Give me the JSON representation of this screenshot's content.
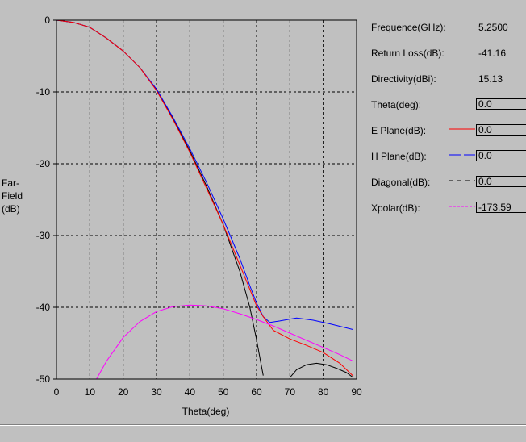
{
  "chart_data": {
    "type": "line",
    "xlabel": "Theta(deg)",
    "ylabel": "Far-\nField\n(dB)",
    "xlim": [
      0,
      90
    ],
    "ylim": [
      -50,
      0
    ],
    "x_ticks": [
      "0",
      "10",
      "20",
      "30",
      "40",
      "50",
      "60",
      "70",
      "80",
      "90"
    ],
    "y_ticks": [
      "0",
      "-10",
      "-20",
      "-30",
      "-40",
      "-50"
    ],
    "grid": true,
    "series": [
      {
        "name": "E Plane(dB)",
        "color": "#ff0000",
        "points": [
          [
            0,
            0
          ],
          [
            5,
            -0.3
          ],
          [
            10,
            -1
          ],
          [
            15,
            -2.5
          ],
          [
            20,
            -4.3
          ],
          [
            25,
            -6.6
          ],
          [
            30,
            -9.8
          ],
          [
            35,
            -13.9
          ],
          [
            40,
            -18.4
          ],
          [
            45,
            -23.4
          ],
          [
            50,
            -28.5
          ],
          [
            55,
            -34.1
          ],
          [
            58,
            -37.5
          ],
          [
            60,
            -39.8
          ],
          [
            62,
            -41.3
          ],
          [
            65,
            -43.2
          ],
          [
            70,
            -44.4
          ],
          [
            75,
            -45.3
          ],
          [
            80,
            -46.3
          ],
          [
            85,
            -47.8
          ],
          [
            89,
            -49.6
          ]
        ]
      },
      {
        "name": "H Plane(dB)",
        "color": "#0000ff",
        "points": [
          [
            0,
            0
          ],
          [
            5,
            -0.3
          ],
          [
            10,
            -1
          ],
          [
            15,
            -2.5
          ],
          [
            20,
            -4.3
          ],
          [
            25,
            -6.6
          ],
          [
            30,
            -9.6
          ],
          [
            35,
            -13.6
          ],
          [
            40,
            -17.9
          ],
          [
            45,
            -22.6
          ],
          [
            50,
            -27.7
          ],
          [
            55,
            -33.2
          ],
          [
            58,
            -37
          ],
          [
            60,
            -39.4
          ],
          [
            62,
            -41.3
          ],
          [
            64,
            -42.1
          ],
          [
            67,
            -41.9
          ],
          [
            72,
            -41.5
          ],
          [
            77,
            -41.8
          ],
          [
            82,
            -42.3
          ],
          [
            89,
            -43.1
          ]
        ]
      },
      {
        "name": "Diagonal(dB)",
        "color": "#000000",
        "points": [
          [
            0,
            0
          ],
          [
            5,
            -0.3
          ],
          [
            10,
            -1
          ],
          [
            15,
            -2.5
          ],
          [
            20,
            -4.3
          ],
          [
            25,
            -6.6
          ],
          [
            30,
            -9.7
          ],
          [
            35,
            -13.8
          ],
          [
            40,
            -18.2
          ],
          [
            45,
            -23.1
          ],
          [
            50,
            -28.5
          ],
          [
            55,
            -35
          ],
          [
            58,
            -40
          ],
          [
            60,
            -44.5
          ],
          [
            61,
            -47
          ],
          [
            62,
            -49.5
          ]
        ]
      },
      {
        "name": "Diagonal(dB)",
        "color": "#000000",
        "points": [
          [
            70,
            -49.8
          ],
          [
            72,
            -48.7
          ],
          [
            75,
            -48
          ],
          [
            78,
            -47.8
          ],
          [
            81,
            -48
          ],
          [
            84,
            -48.5
          ],
          [
            87,
            -49.1
          ],
          [
            89,
            -49.8
          ]
        ]
      },
      {
        "name": "Xpolar(dB)",
        "color": "#ff00ff",
        "points": [
          [
            12,
            -50
          ],
          [
            15,
            -47.5
          ],
          [
            20,
            -44.2
          ],
          [
            25,
            -42
          ],
          [
            30,
            -40.6
          ],
          [
            35,
            -39.9
          ],
          [
            40,
            -39.7
          ],
          [
            45,
            -39.8
          ],
          [
            50,
            -40.2
          ],
          [
            55,
            -40.9
          ],
          [
            60,
            -41.7
          ],
          [
            65,
            -42.6
          ],
          [
            70,
            -43.6
          ],
          [
            75,
            -44.6
          ],
          [
            80,
            -45.6
          ],
          [
            85,
            -46.6
          ],
          [
            89,
            -47.5
          ]
        ]
      }
    ]
  },
  "info": {
    "frequency_label": "Frequence(GHz):",
    "frequency_value": "5.2500",
    "return_loss_label": "Return Loss(dB):",
    "return_loss_value": "-41.16",
    "directivity_label": "Directivity(dBi):",
    "directivity_value": "15.13",
    "theta_label": "Theta(deg):",
    "theta_value": "0.0",
    "e_plane_label": "E Plane(dB):",
    "e_plane_value": "0.0",
    "h_plane_label": "H Plane(dB):",
    "h_plane_value": "0.0",
    "diagonal_label": "Diagonal(dB):",
    "diagonal_value": "0.0",
    "xpolar_label": "Xpolar(dB):",
    "xpolar_value": "-173.59"
  }
}
